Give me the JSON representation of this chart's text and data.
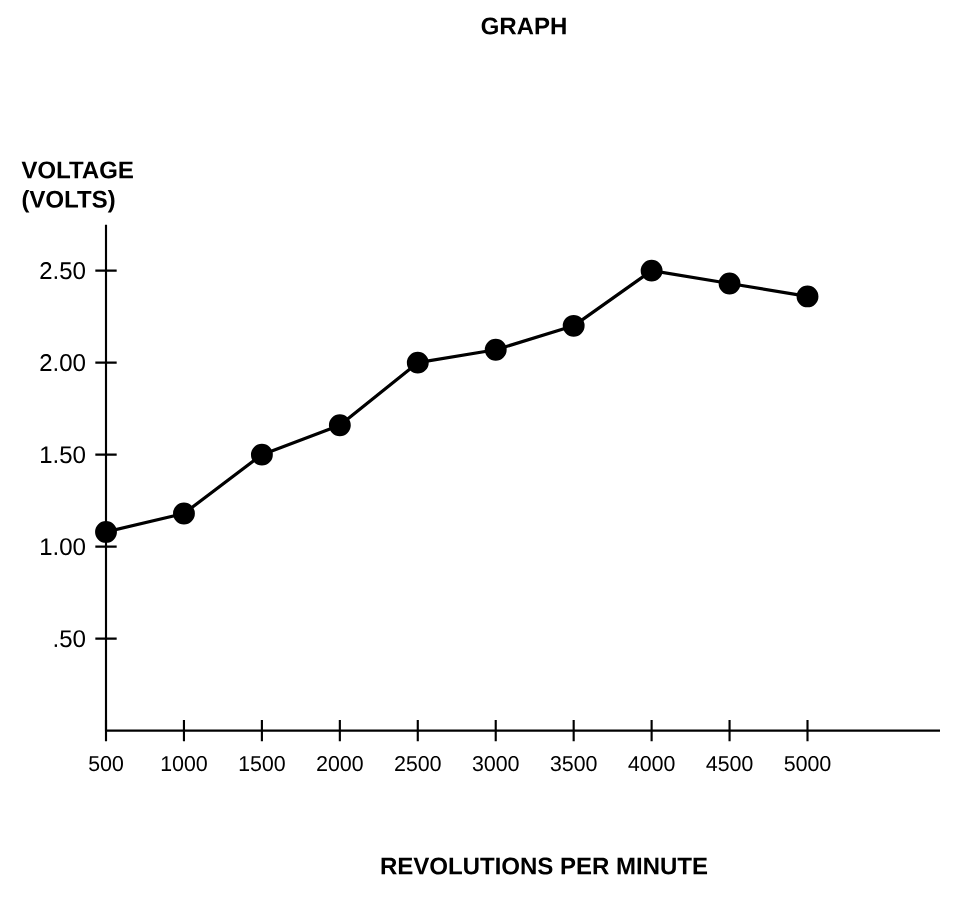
{
  "chart_data": {
    "type": "line",
    "title": "GRAPH",
    "xlabel": "REVOLUTIONS PER MINUTE",
    "ylabel": "VOLTAGE (VOLTS)",
    "x": [
      500,
      1000,
      1500,
      2000,
      2500,
      3000,
      3500,
      4000,
      4500,
      5000
    ],
    "values": [
      1.08,
      1.18,
      1.5,
      1.66,
      2.0,
      2.07,
      2.2,
      2.5,
      2.43,
      2.36
    ],
    "color": "#000000",
    "marker": "circle",
    "line_style": "solid",
    "grid": false,
    "xlim": [
      500,
      5850
    ],
    "xticks": [
      500,
      1000,
      1500,
      2000,
      2500,
      3000,
      3500,
      4000,
      4500,
      5000
    ],
    "ylim": [
      0,
      2.75
    ],
    "yticks": [
      {
        "value": 0.5,
        "label": ".50"
      },
      {
        "value": 1,
        "label": "1.00"
      },
      {
        "value": 1.5,
        "label": "1.50"
      },
      {
        "value": 2,
        "label": "2.00"
      },
      {
        "value": 2.5,
        "label": "2.50"
      }
    ]
  }
}
